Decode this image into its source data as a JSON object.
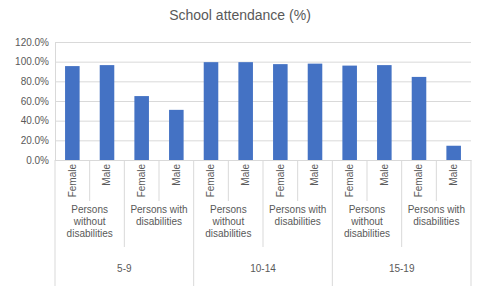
{
  "chart_data": {
    "type": "bar",
    "title": "School attendance (%)",
    "categories": [
      "Female",
      "Male",
      "Female",
      "Male",
      "Female",
      "Male",
      "Female",
      "Male",
      "Female",
      "Male",
      "Female",
      "Male"
    ],
    "groups": [
      {
        "label": "5-9",
        "subgroups": [
          "Persons without disabilities",
          "Persons with disabilities"
        ]
      },
      {
        "label": "10-14",
        "subgroups": [
          "Persons without disabilities",
          "Persons with disabilities"
        ]
      },
      {
        "label": "15-19",
        "subgroups": [
          "Persons without disabilities",
          "Persons with disabilities"
        ]
      }
    ],
    "values": [
      95.5,
      96.5,
      65,
      51,
      99.5,
      99.5,
      97.5,
      98,
      96,
      96.5,
      84.5,
      14.5
    ],
    "color": "#4472c4",
    "ylim": [
      0,
      120
    ],
    "yticks": [
      {
        "value": 0,
        "label": "0.0%"
      },
      {
        "value": 20,
        "label": "20.0%"
      },
      {
        "value": 40,
        "label": "40.0%"
      },
      {
        "value": 60,
        "label": "60.0%"
      },
      {
        "value": 80,
        "label": "80.0%"
      },
      {
        "value": 100,
        "label": "100.0%"
      },
      {
        "value": 120,
        "label": "120.0%"
      }
    ],
    "grid": true
  }
}
